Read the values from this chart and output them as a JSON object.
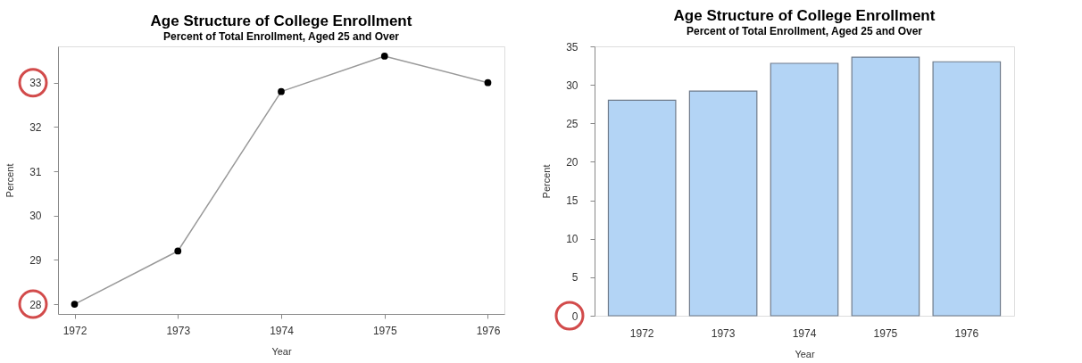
{
  "chart_data": [
    {
      "type": "line",
      "title": "Age Structure of College Enrollment",
      "subtitle": "Percent of Total Enrollment, Aged 25 and Over",
      "xlabel": "Year",
      "ylabel": "Percent",
      "x": [
        1972,
        1973,
        1974,
        1975,
        1976
      ],
      "series": [
        {
          "color": "#999999",
          "values": [
            28,
            29.2,
            32.8,
            33.6,
            33
          ]
        }
      ],
      "marker": "circle",
      "xlim": [
        1971.84,
        1976.16
      ],
      "xticks": [
        1972,
        1973,
        1974,
        1975,
        1976
      ],
      "ylim": [
        27.78,
        33.82
      ],
      "yticks": [
        28,
        29,
        30,
        31,
        32,
        33
      ],
      "grid": false
    },
    {
      "type": "bar",
      "title": "Age Structure of College Enrollment",
      "subtitle": "Percent of Total Enrollment, Aged 25 and Over",
      "xlabel": "Year",
      "ylabel": "Percent",
      "categories": [
        "1972",
        "1973",
        "1974",
        "1975",
        "1976"
      ],
      "values": [
        28,
        29.2,
        32.8,
        33.6,
        33
      ],
      "color": "#b3d4f5",
      "ylim": [
        0,
        35
      ],
      "yticks": [
        0,
        5,
        10,
        15,
        20,
        25,
        30,
        35
      ],
      "grid": false
    }
  ]
}
